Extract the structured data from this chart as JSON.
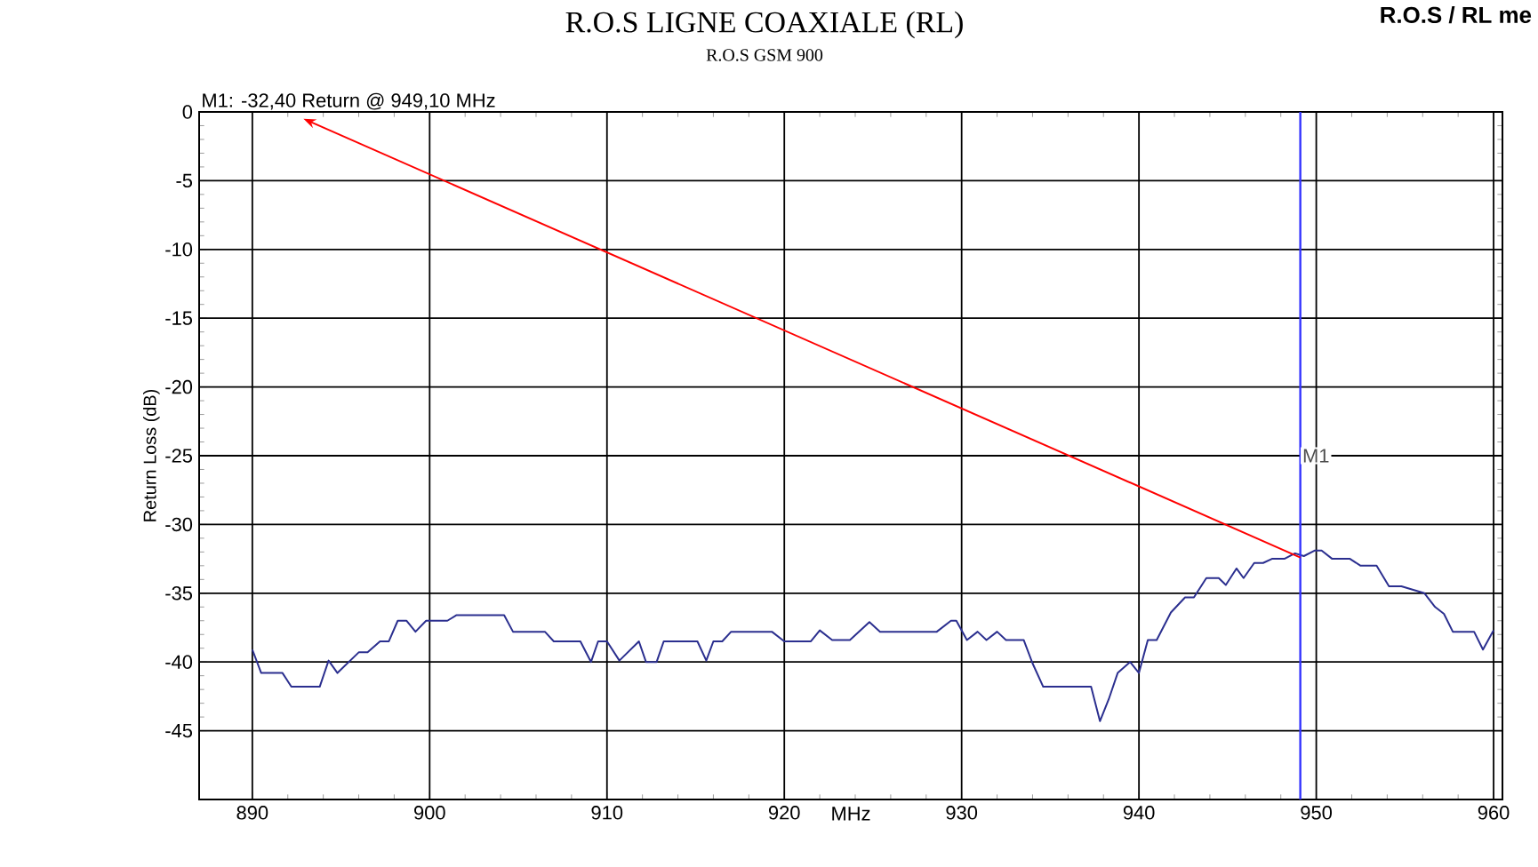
{
  "chart_data": {
    "type": "line",
    "title": "R.O.S LIGNE COAXIALE (RL)",
    "subtitle": "R.O.S GSM 900",
    "xlabel": "MHz",
    "ylabel": "Return Loss (dB)",
    "x": [
      890,
      890.5,
      891.7,
      892.2,
      893.8,
      894.3,
      894.8,
      896,
      896.5,
      897.2,
      897.7,
      898.2,
      898.7,
      899.2,
      899.8,
      901,
      901.5,
      904.2,
      904.7,
      906.5,
      907,
      908.5,
      909.1,
      909.5,
      910,
      910.7,
      911.8,
      912.2,
      912.8,
      913.2,
      915.1,
      915.6,
      916,
      916.5,
      917,
      919.3,
      920,
      921.5,
      922,
      922.7,
      923.7,
      924.8,
      925.4,
      928.6,
      929.4,
      929.7,
      930.3,
      930.9,
      931.4,
      932,
      932.5,
      933.5,
      934,
      934.6,
      937.3,
      937.8,
      938.3,
      938.8,
      939.5,
      940,
      940.5,
      941,
      941.8,
      942.6,
      943.1,
      943.8,
      944.5,
      944.9,
      945.5,
      945.9,
      946.5,
      947,
      947.5,
      948.2,
      948.8,
      949.3,
      949.9,
      950.3,
      950.9,
      951.9,
      952.5,
      953.4,
      954.1,
      954.8,
      956.1,
      956.7,
      957.2,
      957.7,
      958.9,
      959.4,
      960
    ],
    "series": [
      {
        "color": "#2b2f8f",
        "values": [
          -39.1,
          -40.8,
          -40.8,
          -41.8,
          -41.8,
          -39.9,
          -40.8,
          -39.3,
          -39.3,
          -38.5,
          -38.5,
          -37.0,
          -37.0,
          -37.8,
          -37.0,
          -37.0,
          -36.6,
          -36.6,
          -37.8,
          -37.8,
          -38.5,
          -38.5,
          -40,
          -38.5,
          -38.5,
          -39.9,
          -38.5,
          -40,
          -40,
          -38.5,
          -38.5,
          -39.9,
          -38.5,
          -38.5,
          -37.8,
          -37.8,
          -38.5,
          -38.5,
          -37.7,
          -38.4,
          -38.4,
          -37.1,
          -37.8,
          -37.8,
          -37.0,
          -37.0,
          -38.4,
          -37.8,
          -38.4,
          -37.8,
          -38.4,
          -38.4,
          -40.1,
          -41.8,
          -41.8,
          -44.3,
          -42.7,
          -40.8,
          -40,
          -40.8,
          -38.4,
          -38.4,
          -36.4,
          -35.3,
          -35.3,
          -33.9,
          -33.9,
          -34.4,
          -33.2,
          -33.9,
          -32.8,
          -32.8,
          -32.5,
          -32.5,
          -32.1,
          -32.3,
          -31.9,
          -31.9,
          -32.5,
          -32.5,
          -33.0,
          -33.0,
          -34.5,
          -34.5,
          -35,
          -36,
          -36.5,
          -37.8,
          -37.8,
          -39.1,
          -37.7
        ]
      }
    ],
    "xlim": [
      887,
      960.5
    ],
    "ylim": [
      -50,
      0
    ],
    "xticks": [
      890,
      900,
      910,
      920,
      930,
      940,
      950,
      960
    ],
    "yticks": [
      0,
      -5,
      -10,
      -15,
      -20,
      -25,
      -30,
      -35,
      -40,
      -45
    ],
    "grid": true,
    "ref_lines": [
      {
        "axis": "x",
        "value": 949.1,
        "label": "M1",
        "color": "#3333ff"
      }
    ],
    "annotations": [
      {
        "text": "M1: -32,40 Return @ 949,10 MHz",
        "x": 949.1,
        "y": -32.4
      },
      "R.O.S / RL me"
    ]
  }
}
